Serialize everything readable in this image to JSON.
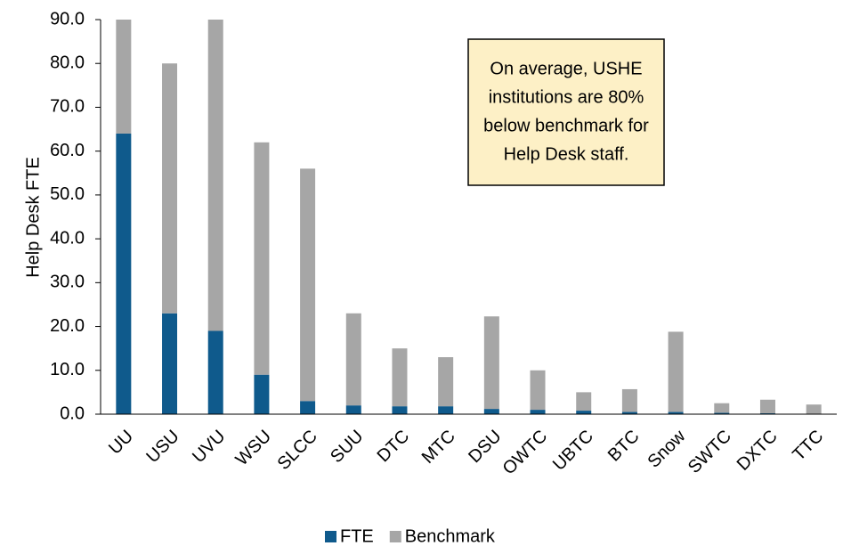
{
  "chart_data": {
    "type": "stacked_bar",
    "y_label": "Help Desk FTE",
    "annotation": [
      "On average, USHE",
      "institutions are 80%",
      "below benchmark for",
      "Help Desk staff."
    ],
    "categories": [
      "UU",
      "USU",
      "UVU",
      "WSU",
      "SLCC",
      "SUU",
      "DTC",
      "MTC",
      "DSU",
      "OWTC",
      "UBTC",
      "BTC",
      "Snow",
      "SWTC",
      "DXTC",
      "TTC"
    ],
    "series": [
      {
        "name": "FTE",
        "color": "#0f5a8c",
        "values": [
          64,
          23,
          19,
          9,
          3,
          2,
          1.8,
          1.8,
          1.2,
          1.0,
          0.8,
          0.5,
          0.5,
          0.3,
          0.2,
          0.1
        ]
      },
      {
        "name": "Benchmark",
        "color": "#a6a6a6",
        "values": [
          26,
          57,
          71,
          53,
          53,
          21,
          13.2,
          11.2,
          21.1,
          9.0,
          4.2,
          5.2,
          18.3,
          2.2,
          3.1,
          2.1
        ]
      }
    ],
    "ylim": [
      0,
      90
    ],
    "yticks": [
      {
        "value": 0,
        "label": "0.0"
      },
      {
        "value": 10,
        "label": "10.0"
      },
      {
        "value": 20,
        "label": "20.0"
      },
      {
        "value": 30,
        "label": "30.0"
      },
      {
        "value": 40,
        "label": "40.0"
      },
      {
        "value": 50,
        "label": "50.0"
      },
      {
        "value": 60,
        "label": "60.0"
      },
      {
        "value": 70,
        "label": "70.0"
      },
      {
        "value": 80,
        "label": "80.0"
      },
      {
        "value": 90,
        "label": "90.0"
      }
    ],
    "legend": "bottom"
  }
}
